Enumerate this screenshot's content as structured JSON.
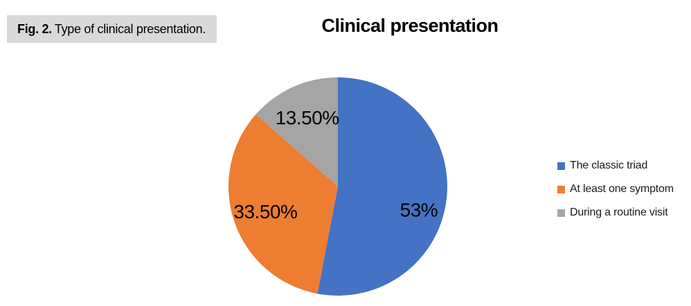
{
  "figure_caption": {
    "prefix": "Fig. 2.",
    "text": "Type of clinical presentation."
  },
  "chart_data": {
    "type": "pie",
    "title": "Clinical presentation",
    "labels": [
      "The classic triad",
      "At least one symptom",
      "During a routine visit"
    ],
    "values": [
      53,
      33.5,
      13.5
    ],
    "display_labels": [
      "53%",
      "33.50%",
      "13.50%"
    ],
    "colors": [
      "#4472c4",
      "#ed7d31",
      "#a5a5a5"
    ],
    "label_text_color": "#000000",
    "start_angle_deg": 0,
    "direction": "clockwise",
    "legend_position": "right",
    "grid": false,
    "label_positions": [
      {
        "angle_deg": 106,
        "radius_frac": 0.77
      },
      {
        "angle_deg": 251,
        "radius_frac": 0.7
      },
      {
        "angle_deg": 336,
        "radius_frac": 0.69
      }
    ]
  }
}
